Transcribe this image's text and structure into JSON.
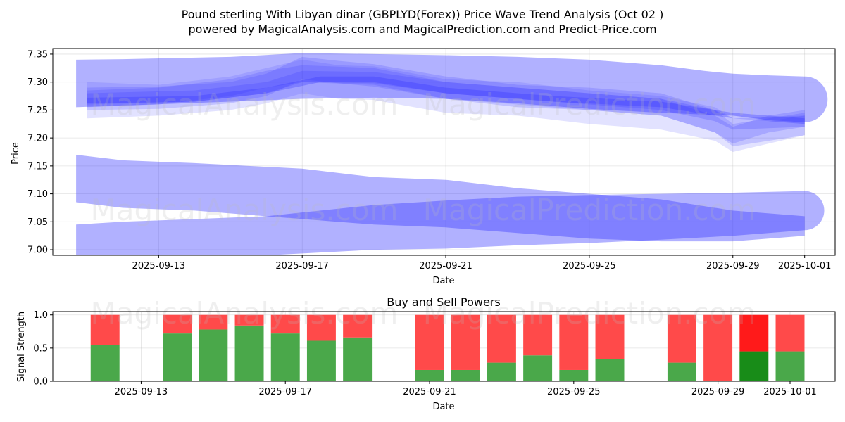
{
  "title": "Pound sterling With Libyan dinar (GBPLYD(Forex)) Price Wave Trend Analysis (Oct 02 )",
  "subtitle": "powered by MagicalAnalysis.com and MagicalPrediction.com and Predict-Price.com",
  "watermarks": [
    "MagicalAnalysis.com",
    "MagicalPrediction.com"
  ],
  "colors": {
    "band": "#3333ff",
    "buy": "#4aa84a",
    "sell": "#ff4a4a",
    "buy_strong": "#188c18",
    "sell_strong": "#ff1a1a"
  },
  "chart_data": [
    {
      "type": "area",
      "title": "",
      "xlabel": "Date",
      "ylabel": "Price",
      "ylim": [
        6.99,
        7.36
      ],
      "x_ticks": [
        "2025-09-13",
        "2025-09-17",
        "2025-09-21",
        "2025-09-25",
        "2025-09-29",
        "2025-10-01"
      ],
      "y_ticks": [
        "7.00",
        "7.05",
        "7.10",
        "7.15",
        "7.20",
        "7.25",
        "7.30",
        "7.35"
      ],
      "y_tick_values": [
        7.0,
        7.05,
        7.1,
        7.15,
        7.2,
        7.25,
        7.3,
        7.35
      ],
      "bands": [
        {
          "name": "upper-wide",
          "upper": [
            [
              10.7,
              7.34
            ],
            [
              12,
              7.341
            ],
            [
              15,
              7.345
            ],
            [
              17,
              7.352
            ],
            [
              19,
              7.35
            ],
            [
              21,
              7.348
            ],
            [
              23,
              7.345
            ],
            [
              25,
              7.34
            ],
            [
              27,
              7.33
            ],
            [
              28.2,
              7.32
            ],
            [
              29,
              7.315
            ],
            [
              30,
              7.312
            ],
            [
              31,
              7.31
            ]
          ],
          "lower": [
            [
              10.7,
              7.255
            ],
            [
              12,
              7.258
            ],
            [
              15,
              7.265
            ],
            [
              17,
              7.27
            ],
            [
              19,
              7.272
            ],
            [
              21,
              7.27
            ],
            [
              23,
              7.262
            ],
            [
              25,
              7.252
            ],
            [
              27,
              7.245
            ],
            [
              29,
              7.24
            ],
            [
              30,
              7.232
            ],
            [
              31,
              7.228
            ]
          ],
          "opacity": 0.38,
          "cap_end": true
        },
        {
          "name": "trend-1",
          "upper": [
            [
              11,
              7.29
            ],
            [
              13,
              7.292
            ],
            [
              15,
              7.3
            ],
            [
              16,
              7.315
            ],
            [
              17,
              7.345
            ],
            [
              18,
              7.338
            ],
            [
              19,
              7.332
            ],
            [
              21,
              7.31
            ],
            [
              23,
              7.295
            ],
            [
              25,
              7.29
            ],
            [
              27,
              7.28
            ],
            [
              28.5,
              7.25
            ],
            [
              29,
              7.225
            ],
            [
              30,
              7.235
            ],
            [
              31,
              7.245
            ]
          ],
          "lower": [
            [
              11,
              7.25
            ],
            [
              13,
              7.252
            ],
            [
              15,
              7.262
            ],
            [
              16,
              7.275
            ],
            [
              17,
              7.305
            ],
            [
              18,
              7.298
            ],
            [
              19,
              7.292
            ],
            [
              21,
              7.27
            ],
            [
              23,
              7.255
            ],
            [
              25,
              7.25
            ],
            [
              27,
              7.24
            ],
            [
              28.5,
              7.21
            ],
            [
              29,
              7.185
            ],
            [
              30,
              7.195
            ],
            [
              31,
              7.205
            ]
          ],
          "opacity": 0.18,
          "cap_end": false
        },
        {
          "name": "trend-2",
          "upper": [
            [
              11,
              7.285
            ],
            [
              13,
              7.29
            ],
            [
              15,
              7.305
            ],
            [
              16,
              7.32
            ],
            [
              17,
              7.33
            ],
            [
              19,
              7.325
            ],
            [
              21,
              7.3
            ],
            [
              23,
              7.29
            ],
            [
              25,
              7.28
            ],
            [
              27,
              7.27
            ],
            [
              28.5,
              7.24
            ],
            [
              29,
              7.22
            ],
            [
              30,
              7.24
            ],
            [
              31,
              7.25
            ]
          ],
          "lower": [
            [
              11,
              7.255
            ],
            [
              13,
              7.26
            ],
            [
              15,
              7.275
            ],
            [
              16,
              7.29
            ],
            [
              17,
              7.3
            ],
            [
              19,
              7.295
            ],
            [
              21,
              7.27
            ],
            [
              23,
              7.26
            ],
            [
              25,
              7.25
            ],
            [
              27,
              7.24
            ],
            [
              28.5,
              7.21
            ],
            [
              29,
              7.19
            ],
            [
              30,
              7.21
            ],
            [
              31,
              7.22
            ]
          ],
          "opacity": 0.18,
          "cap_end": false
        },
        {
          "name": "trend-3",
          "upper": [
            [
              11,
              7.3
            ],
            [
              13,
              7.295
            ],
            [
              15,
              7.31
            ],
            [
              16,
              7.325
            ],
            [
              17,
              7.34
            ],
            [
              18,
              7.33
            ],
            [
              19,
              7.328
            ],
            [
              21,
              7.305
            ],
            [
              23,
              7.3
            ],
            [
              25,
              7.285
            ],
            [
              27,
              7.275
            ],
            [
              28.5,
              7.255
            ],
            [
              29,
              7.235
            ],
            [
              30,
              7.23
            ],
            [
              31,
              7.24
            ]
          ],
          "lower": [
            [
              11,
              7.235
            ],
            [
              13,
              7.24
            ],
            [
              15,
              7.25
            ],
            [
              16,
              7.262
            ],
            [
              17,
              7.28
            ],
            [
              18,
              7.27
            ],
            [
              19,
              7.268
            ],
            [
              21,
              7.245
            ],
            [
              23,
              7.24
            ],
            [
              25,
              7.225
            ],
            [
              27,
              7.215
            ],
            [
              28.5,
              7.195
            ],
            [
              29,
              7.175
            ],
            [
              30,
              7.19
            ],
            [
              31,
              7.205
            ]
          ],
          "opacity": 0.14,
          "cap_end": false
        },
        {
          "name": "trend-4",
          "upper": [
            [
              11,
              7.28
            ],
            [
              14,
              7.285
            ],
            [
              16,
              7.3
            ],
            [
              17,
              7.32
            ],
            [
              19,
              7.318
            ],
            [
              21,
              7.3
            ],
            [
              24,
              7.285
            ],
            [
              27,
              7.27
            ],
            [
              28.5,
              7.25
            ],
            [
              29,
              7.235
            ],
            [
              31,
              7.24
            ]
          ],
          "lower": [
            [
              11,
              7.26
            ],
            [
              14,
              7.265
            ],
            [
              16,
              7.28
            ],
            [
              17,
              7.3
            ],
            [
              19,
              7.298
            ],
            [
              21,
              7.28
            ],
            [
              24,
              7.265
            ],
            [
              27,
              7.25
            ],
            [
              28.5,
              7.23
            ],
            [
              29,
              7.215
            ],
            [
              31,
              7.22
            ]
          ],
          "opacity": 0.2,
          "cap_end": false
        },
        {
          "name": "trend-5",
          "upper": [
            [
              11,
              7.272
            ],
            [
              14,
              7.275
            ],
            [
              16,
              7.29
            ],
            [
              17.5,
              7.31
            ],
            [
              19,
              7.31
            ],
            [
              21,
              7.29
            ],
            [
              24,
              7.275
            ],
            [
              27,
              7.265
            ],
            [
              29,
              7.245
            ],
            [
              31,
              7.235
            ]
          ],
          "lower": [
            [
              11,
              7.262
            ],
            [
              14,
              7.265
            ],
            [
              16,
              7.28
            ],
            [
              17.5,
              7.3
            ],
            [
              19,
              7.3
            ],
            [
              21,
              7.28
            ],
            [
              24,
              7.265
            ],
            [
              27,
              7.255
            ],
            [
              29,
              7.235
            ],
            [
              31,
              7.225
            ]
          ],
          "opacity": 0.3,
          "cap_end": false
        },
        {
          "name": "lower-a",
          "upper": [
            [
              10.7,
              7.17
            ],
            [
              12,
              7.16
            ],
            [
              14,
              7.155
            ],
            [
              17,
              7.145
            ],
            [
              19,
              7.13
            ],
            [
              21,
              7.125
            ],
            [
              23,
              7.11
            ],
            [
              25,
              7.1
            ],
            [
              27,
              7.09
            ],
            [
              29,
              7.07
            ],
            [
              31,
              7.06
            ]
          ],
          "lower": [
            [
              10.7,
              7.085
            ],
            [
              12,
              7.075
            ],
            [
              14,
              7.07
            ],
            [
              17,
              7.055
            ],
            [
              19,
              7.045
            ],
            [
              21,
              7.04
            ],
            [
              23,
              7.03
            ],
            [
              25,
              7.02
            ],
            [
              27,
              7.015
            ],
            [
              29,
              7.015
            ],
            [
              31,
              7.025
            ]
          ],
          "opacity": 0.38,
          "cap_end": false
        },
        {
          "name": "lower-b",
          "upper": [
            [
              10.7,
              7.045
            ],
            [
              12,
              7.05
            ],
            [
              14,
              7.055
            ],
            [
              16,
              7.06
            ],
            [
              19,
              7.08
            ],
            [
              21,
              7.088
            ],
            [
              23,
              7.095
            ],
            [
              25,
              7.098
            ],
            [
              27,
              7.1
            ],
            [
              29,
              7.102
            ],
            [
              31,
              7.105
            ]
          ],
          "lower": [
            [
              10.7,
              6.99
            ],
            [
              12,
              6.99
            ],
            [
              14,
              6.99
            ],
            [
              16,
              6.99
            ],
            [
              19,
              7.0
            ],
            [
              21,
              7.002
            ],
            [
              23,
              7.008
            ],
            [
              25,
              7.012
            ],
            [
              27,
              7.018
            ],
            [
              29,
              7.025
            ],
            [
              31,
              7.035
            ]
          ],
          "opacity": 0.38,
          "cap_end": true
        }
      ]
    },
    {
      "type": "bar",
      "title": "Buy and Sell Powers",
      "xlabel": "Date",
      "ylabel": "Signal Strength",
      "ylim": [
        0,
        1.05
      ],
      "y_ticks": [
        "0.0",
        "0.5",
        "1.0"
      ],
      "y_tick_values": [
        0,
        0.5,
        1.0
      ],
      "x_ticks": [
        "2025-09-13",
        "2025-09-17",
        "2025-09-21",
        "2025-09-25",
        "2025-09-29",
        "2025-10-01"
      ],
      "x_tick_days": [
        13,
        17,
        21,
        25,
        29,
        31
      ],
      "days": [
        12,
        14,
        15,
        16,
        17,
        18,
        19,
        21,
        22,
        23,
        24,
        25,
        26,
        28,
        29,
        30,
        31
      ],
      "series": [
        {
          "name": "Buy",
          "values": [
            0.55,
            0.72,
            0.78,
            0.84,
            0.72,
            0.61,
            0.66,
            0.17,
            0.17,
            0.28,
            0.39,
            0.17,
            0.33,
            0.28,
            0.0,
            0.45,
            0.45
          ]
        },
        {
          "name": "Sell",
          "values": [
            0.45,
            0.28,
            0.22,
            0.16,
            0.28,
            0.39,
            0.34,
            0.83,
            0.83,
            0.72,
            0.61,
            0.83,
            0.67,
            0.72,
            1.0,
            0.55,
            0.55
          ]
        }
      ],
      "highlight_day": 30
    }
  ]
}
